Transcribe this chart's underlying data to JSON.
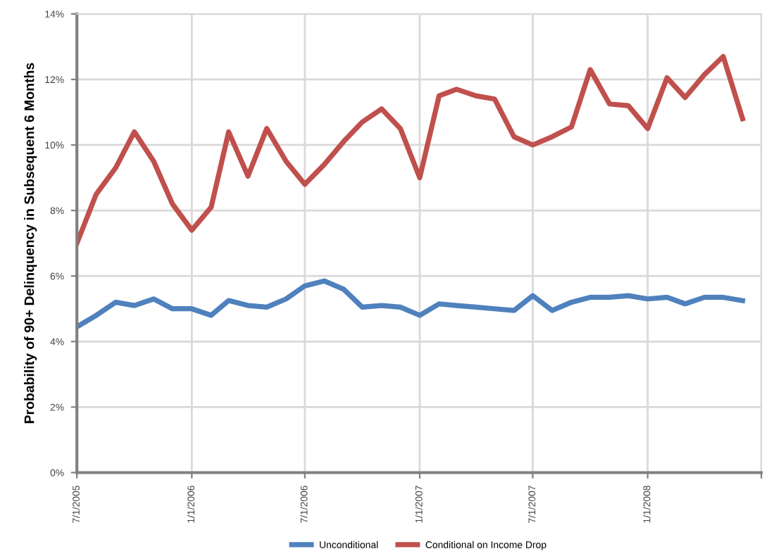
{
  "chart_data": {
    "type": "line",
    "ylabel": "Probability of 90+ Delinquency in Subsequent 6 Months",
    "x": [
      "2005-07",
      "2005-08",
      "2005-09",
      "2005-10",
      "2005-11",
      "2005-12",
      "2006-01",
      "2006-02",
      "2006-03",
      "2006-04",
      "2006-05",
      "2006-06",
      "2006-07",
      "2006-08",
      "2006-09",
      "2006-10",
      "2006-11",
      "2006-12",
      "2007-01",
      "2007-02",
      "2007-03",
      "2007-04",
      "2007-05",
      "2007-06",
      "2007-07",
      "2007-08",
      "2007-09",
      "2007-10",
      "2007-11",
      "2007-12",
      "2008-01",
      "2008-02",
      "2008-03",
      "2008-04",
      "2008-05",
      "2008-06"
    ],
    "series": [
      {
        "name": "Unconditional",
        "color": "#4f81bd",
        "values": [
          4.45,
          4.8,
          5.2,
          5.1,
          5.3,
          5.0,
          5.0,
          4.8,
          5.25,
          5.1,
          5.05,
          5.3,
          5.7,
          5.85,
          5.6,
          5.05,
          5.1,
          5.05,
          4.8,
          5.15,
          5.1,
          5.05,
          5.0,
          4.95,
          5.4,
          4.95,
          5.2,
          5.35,
          5.35,
          5.4,
          5.3,
          5.35,
          5.15,
          5.35,
          5.35,
          5.25
        ]
      },
      {
        "name": "Conditional on Income Drop",
        "color": "#c0504d",
        "values": [
          7.0,
          8.5,
          9.3,
          10.4,
          9.5,
          8.2,
          7.4,
          8.1,
          10.4,
          9.05,
          10.5,
          9.5,
          8.8,
          9.4,
          10.1,
          10.7,
          11.1,
          10.5,
          9.0,
          11.5,
          11.7,
          11.5,
          11.4,
          10.25,
          10.0,
          10.25,
          10.55,
          12.3,
          11.25,
          11.2,
          10.5,
          12.05,
          11.45,
          12.15,
          12.7,
          10.8
        ]
      }
    ],
    "xlim": [
      "2005-07",
      "2008-07"
    ],
    "xticks": [
      {
        "value": "2005-07",
        "label": "7/1/2005"
      },
      {
        "value": "2006-01",
        "label": "1/1/2006"
      },
      {
        "value": "2006-07",
        "label": "7/1/2006"
      },
      {
        "value": "2007-01",
        "label": "1/1/2007"
      },
      {
        "value": "2007-07",
        "label": "7/1/2007"
      },
      {
        "value": "2008-01",
        "label": "1/1/2008"
      },
      {
        "value": "2008-07",
        "label": null
      }
    ],
    "ylim": [
      0,
      14
    ],
    "yticks": [
      {
        "value": 0,
        "label": "0%"
      },
      {
        "value": 2,
        "label": "2%"
      },
      {
        "value": 4,
        "label": "4%"
      },
      {
        "value": 6,
        "label": "6%"
      },
      {
        "value": 8,
        "label": "8%"
      },
      {
        "value": 10,
        "label": "10%"
      },
      {
        "value": 12,
        "label": "12%"
      },
      {
        "value": 14,
        "label": "14%"
      }
    ],
    "grid": true,
    "legend": "bottom",
    "marker": "none",
    "line_style": "solid"
  }
}
